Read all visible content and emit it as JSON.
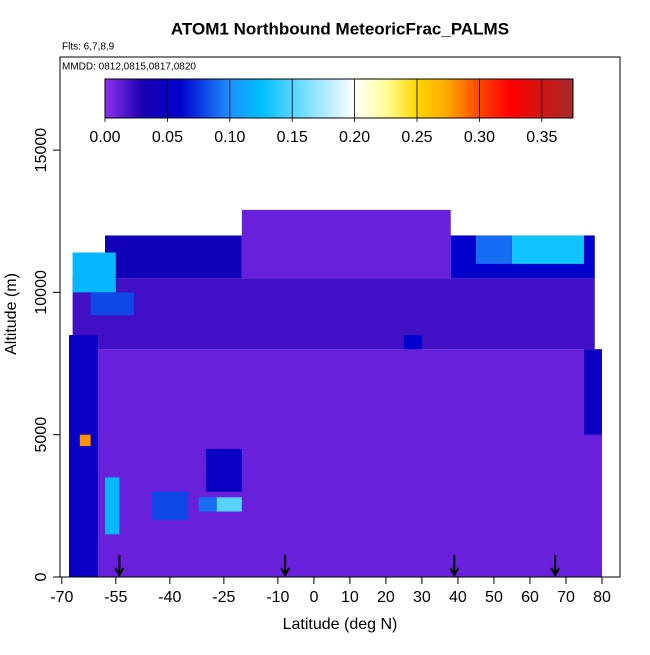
{
  "chart_data": {
    "type": "heatmap",
    "title": "ATOM1 Northbound MeteoricFrac_PALMS",
    "subtitle": "Flts: 6,7,8,9",
    "annotation": "MMDD: 0812,0815,0817,0820",
    "xlabel": "Latitude (deg N)",
    "ylabel": "Altitude (m)",
    "xlim": [
      -70.5,
      85
    ],
    "ylim": [
      0,
      18270
    ],
    "xticks": [
      -70,
      -55,
      -40,
      -25,
      -10,
      0,
      10,
      20,
      30,
      40,
      50,
      60,
      70,
      80
    ],
    "yticks": [
      0,
      5000,
      10000,
      15000
    ],
    "colorbar": {
      "lim": [
        0,
        0.375
      ],
      "ticks": [
        {
          "value": 0,
          "label": "0.00"
        },
        {
          "value": 0.05,
          "label": "0.05"
        },
        {
          "value": 0.1,
          "label": "0.10"
        },
        {
          "value": 0.15,
          "label": "0.15"
        },
        {
          "value": 0.2,
          "label": "0.20"
        },
        {
          "value": 0.25,
          "label": "0.25"
        },
        {
          "value": 0.3,
          "label": "0.30"
        },
        {
          "value": 0.35,
          "label": "0.35"
        }
      ]
    },
    "colorscale": [
      [
        0,
        "#9030f0"
      ],
      [
        0.03,
        "#1a00b0"
      ],
      [
        0.06,
        "#0000cd"
      ],
      [
        0.1,
        "#1e90ff"
      ],
      [
        0.125,
        "#00bfff"
      ],
      [
        0.2,
        "#ffffff"
      ],
      [
        0.225,
        "#ffff99"
      ],
      [
        0.25,
        "#ffd700"
      ],
      [
        0.275,
        "#ffa500"
      ],
      [
        0.3,
        "#ff4500"
      ],
      [
        0.325,
        "#ff0000"
      ],
      [
        0.375,
        "#a52a2a"
      ]
    ],
    "cells": [
      {
        "lat": [
          -67,
          80
        ],
        "alt": [
          0,
          8000
        ],
        "value": 0.01
      },
      {
        "lat": [
          -67,
          78
        ],
        "alt": [
          8000,
          10500
        ],
        "value": 0.02
      },
      {
        "lat": [
          -58,
          -20
        ],
        "alt": [
          10500,
          12000
        ],
        "value": 0.04
      },
      {
        "lat": [
          -20,
          38
        ],
        "alt": [
          10500,
          12900
        ],
        "value": 0.01
      },
      {
        "lat": [
          38,
          78
        ],
        "alt": [
          10500,
          12000
        ],
        "value": 0.06
      },
      {
        "lat": [
          -67,
          -55
        ],
        "alt": [
          10000,
          11400
        ],
        "value": 0.12
      },
      {
        "lat": [
          -62,
          -50
        ],
        "alt": [
          9200,
          10000
        ],
        "value": 0.08
      },
      {
        "lat": [
          -68,
          -60
        ],
        "alt": [
          0,
          8500
        ],
        "value": 0.05
      },
      {
        "lat": [
          -65,
          -62
        ],
        "alt": [
          4600,
          5000
        ],
        "value": 0.28
      },
      {
        "lat": [
          -58,
          -54
        ],
        "alt": [
          1500,
          3500
        ],
        "value": 0.12
      },
      {
        "lat": [
          -27,
          -20
        ],
        "alt": [
          2300,
          2800
        ],
        "value": 0.15
      },
      {
        "lat": [
          -32,
          -27
        ],
        "alt": [
          2300,
          2800
        ],
        "value": 0.09
      },
      {
        "lat": [
          55,
          75
        ],
        "alt": [
          11000,
          12000
        ],
        "value": 0.13
      },
      {
        "lat": [
          45,
          55
        ],
        "alt": [
          11000,
          12000
        ],
        "value": 0.09
      },
      {
        "lat": [
          75,
          80
        ],
        "alt": [
          5000,
          8000
        ],
        "value": 0.05
      },
      {
        "lat": [
          25,
          30
        ],
        "alt": [
          8000,
          8500
        ],
        "value": 0.06
      },
      {
        "lat": [
          -30,
          -20
        ],
        "alt": [
          3000,
          4500
        ],
        "value": 0.05
      },
      {
        "lat": [
          -45,
          -35
        ],
        "alt": [
          2000,
          3000
        ],
        "value": 0.08
      }
    ],
    "arrows_lat": [
      -54,
      -8,
      39,
      67
    ]
  }
}
